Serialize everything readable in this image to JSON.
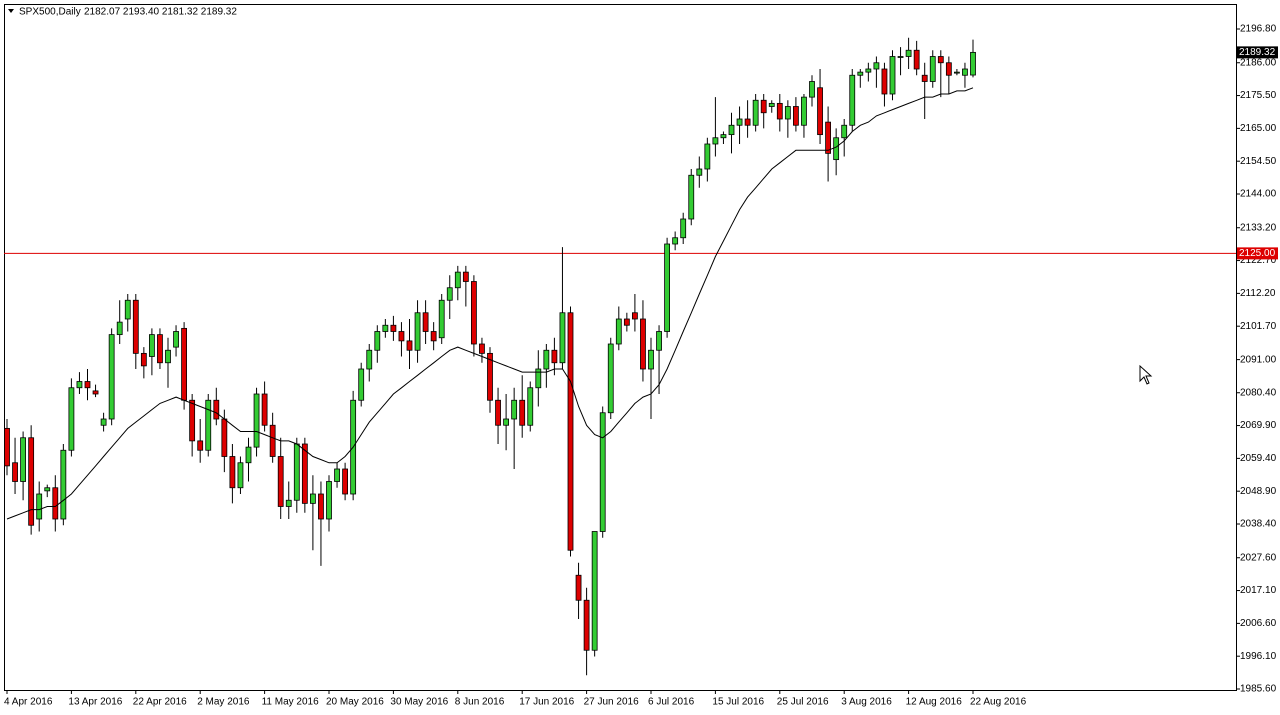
{
  "chart_data": {
    "type": "candlestick",
    "title": "SPX500,Daily",
    "subtitle": "2182.07 2193.40 2181.32 2189.32",
    "categories": [
      "4 Apr 2016",
      null,
      null,
      null,
      null,
      null,
      null,
      null,
      "13 Apr 2016",
      null,
      null,
      null,
      null,
      null,
      null,
      null,
      "22 Apr 2016",
      null,
      null,
      null,
      null,
      null,
      null,
      null,
      "2 May 2016",
      null,
      null,
      null,
      null,
      null,
      null,
      null,
      "11 May 2016",
      null,
      null,
      null,
      null,
      null,
      null,
      null,
      "20 May 2016",
      null,
      null,
      null,
      null,
      null,
      null,
      null,
      "30 May 2016",
      null,
      null,
      null,
      null,
      null,
      null,
      null,
      "8 Jun 2016",
      null,
      null,
      null,
      null,
      null,
      null,
      null,
      "17 Jun 2016",
      null,
      null,
      null,
      null,
      null,
      null,
      null,
      "27 Jun 2016",
      null,
      null,
      null,
      null,
      null,
      null,
      null,
      "6 Jul 2016",
      null,
      null,
      null,
      null,
      null,
      null,
      null,
      "15 Jul 2016",
      null,
      null,
      null,
      null,
      null,
      null,
      null,
      "25 Jul 2016",
      null,
      null,
      null,
      null,
      null,
      null,
      null,
      "3 Aug 2016",
      null,
      null,
      null,
      null,
      null,
      null,
      null,
      "12 Aug 2016",
      null,
      null,
      null,
      null,
      null,
      null,
      null,
      "22 Aug 2016"
    ],
    "open": [
      2069,
      2058,
      2052,
      2066,
      2040,
      2049,
      2050,
      2040,
      2062,
      2082,
      2084,
      2081,
      2070,
      2072,
      2099,
      2104,
      2110,
      2093,
      2092,
      2099,
      2090,
      2095,
      2101,
      2078,
      2065,
      2062,
      2078,
      2072,
      2060,
      2050,
      2058,
      2063,
      2080,
      2070,
      2060,
      2044,
      2046,
      2064,
      2045,
      2048,
      2040,
      2052,
      2056,
      2048,
      2078,
      2088,
      2094,
      2100,
      2102,
      2100,
      2097,
      2094,
      2106,
      2100,
      2098,
      2110,
      2114,
      2119,
      2116,
      2096,
      2093,
      2078,
      2070,
      2072,
      2078,
      2070,
      2082,
      2088,
      2094,
      2090,
      2106,
      2022,
      2014,
      1998,
      2036,
      2074,
      2096,
      2104,
      2106,
      2104,
      2088,
      2094,
      2100,
      2128,
      2130,
      2136,
      2150,
      2152,
      2160,
      2162,
      2163,
      2166,
      2168,
      2166,
      2174,
      2172,
      2173,
      2168,
      2172,
      2166,
      2175,
      2178,
      2167,
      2155,
      2162,
      2166,
      2182,
      2183,
      2184,
      2184,
      2176,
      2188,
      2188,
      2190,
      2182,
      2180,
      2188,
      2186,
      2183,
      2182,
      2182.07
    ],
    "high": [
      2072,
      2066,
      2068,
      2070,
      2052,
      2051,
      2054,
      2064,
      2085,
      2087,
      2088,
      2083,
      2074,
      2101,
      2110,
      2112,
      2112,
      2095,
      2101,
      2101,
      2098,
      2102,
      2103,
      2080,
      2072,
      2080,
      2082,
      2075,
      2064,
      2060,
      2066,
      2082,
      2084,
      2074,
      2066,
      2052,
      2066,
      2066,
      2054,
      2052,
      2054,
      2058,
      2058,
      2081,
      2090,
      2096,
      2102,
      2104,
      2105,
      2103,
      2104,
      2110,
      2110,
      2103,
      2112,
      2118,
      2121,
      2121,
      2118,
      2098,
      2095,
      2082,
      2080,
      2082,
      2086,
      2084,
      2094,
      2096,
      2098,
      2127,
      2108,
      2026,
      2018,
      2036,
      2076,
      2098,
      2108,
      2106,
      2112,
      2110,
      2098,
      2102,
      2130,
      2132,
      2138,
      2152,
      2156,
      2162,
      2175,
      2164,
      2170,
      2172,
      2174,
      2176,
      2176,
      2174,
      2176,
      2174,
      2175,
      2176,
      2182,
      2184,
      2172,
      2165,
      2168,
      2184,
      2184,
      2186,
      2188,
      2186,
      2190,
      2191,
      2194,
      2193,
      2186,
      2190,
      2190,
      2188,
      2184,
      2186,
      2193.4
    ],
    "low": [
      2054,
      2048,
      2046,
      2035,
      2036,
      2047,
      2036,
      2038,
      2060,
      2080,
      2078,
      2079,
      2068,
      2070,
      2096,
      2100,
      2088,
      2085,
      2086,
      2088,
      2082,
      2092,
      2075,
      2060,
      2058,
      2060,
      2070,
      2055,
      2045,
      2048,
      2052,
      2060,
      2068,
      2058,
      2040,
      2040,
      2042,
      2042,
      2030,
      2025,
      2036,
      2050,
      2046,
      2046,
      2076,
      2084,
      2090,
      2098,
      2097,
      2092,
      2088,
      2090,
      2096,
      2094,
      2096,
      2104,
      2110,
      2108,
      2092,
      2090,
      2074,
      2064,
      2062,
      2056,
      2066,
      2068,
      2076,
      2082,
      2086,
      2088,
      2028,
      2008,
      1990,
      1996,
      2034,
      2072,
      2094,
      2100,
      2100,
      2084,
      2072,
      2080,
      2098,
      2126,
      2128,
      2134,
      2146,
      2148,
      2156,
      2160,
      2157,
      2160,
      2162,
      2164,
      2165,
      2170,
      2164,
      2162,
      2164,
      2162,
      2172,
      2160,
      2148,
      2150,
      2156,
      2164,
      2178,
      2180,
      2178,
      2172,
      2174,
      2182,
      2184,
      2182,
      2168,
      2178,
      2175,
      2176,
      2182,
      2178,
      2181.32
    ],
    "close": [
      2057,
      2052,
      2066,
      2038,
      2048,
      2050,
      2040,
      2062,
      2082,
      2084,
      2082,
      2080,
      2072,
      2099,
      2103,
      2110,
      2093,
      2089,
      2099,
      2090,
      2094,
      2100,
      2078,
      2065,
      2062,
      2078,
      2072,
      2060,
      2050,
      2058,
      2063,
      2080,
      2070,
      2060,
      2044,
      2046,
      2064,
      2045,
      2048,
      2040,
      2052,
      2056,
      2048,
      2078,
      2088,
      2094,
      2100,
      2102,
      2100,
      2097,
      2094,
      2106,
      2100,
      2097,
      2110,
      2114,
      2119,
      2116,
      2096,
      2093,
      2078,
      2070,
      2072,
      2078,
      2070,
      2082,
      2088,
      2094,
      2090,
      2106,
      2030,
      2014,
      1998,
      2036,
      2074,
      2096,
      2104,
      2102,
      2104,
      2088,
      2094,
      2100,
      2128,
      2130,
      2136,
      2150,
      2152,
      2160,
      2162,
      2163,
      2166,
      2168,
      2166,
      2174,
      2170,
      2173,
      2168,
      2172,
      2166,
      2175,
      2180,
      2163,
      2157,
      2162,
      2166,
      2182,
      2183,
      2184,
      2186,
      2176,
      2188,
      2188,
      2190,
      2184,
      2180,
      2188,
      2186,
      2182,
      2183,
      2184,
      2189.32
    ],
    "ma": {
      "color": "#000000",
      "values": [
        2040,
        2041,
        2042,
        2043,
        2043,
        2044,
        2044,
        2046,
        2048,
        2051,
        2054,
        2057,
        2060,
        2063,
        2066,
        2069,
        2071,
        2073,
        2075,
        2077,
        2078,
        2079,
        2078,
        2077,
        2076,
        2075,
        2074,
        2072,
        2070,
        2068,
        2068,
        2068,
        2067,
        2066,
        2065,
        2065,
        2064,
        2062,
        2060,
        2059,
        2058,
        2058,
        2060,
        2063,
        2067,
        2071,
        2074,
        2077,
        2080,
        2082,
        2084,
        2086,
        2088,
        2090,
        2092,
        2094,
        2095,
        2094,
        2093,
        2092,
        2091,
        2090,
        2089,
        2088,
        2087,
        2087,
        2087,
        2087,
        2088,
        2088,
        2084,
        2076,
        2070,
        2067,
        2066,
        2068,
        2071,
        2074,
        2077,
        2079,
        2080,
        2083,
        2088,
        2094,
        2100,
        2106,
        2112,
        2118,
        2124,
        2129,
        2134,
        2139,
        2143,
        2146,
        2149,
        2152,
        2154,
        2156,
        2158,
        2158,
        2158,
        2158,
        2158,
        2159,
        2161,
        2164,
        2166,
        2167,
        2169,
        2170,
        2171,
        2172,
        2173,
        2174,
        2175,
        2175,
        2176,
        2176,
        2177,
        2177,
        2178
      ]
    },
    "up_color": "#33cc33",
    "down_color": "#dd0000",
    "ylim": [
      1985.28,
      2204.8
    ],
    "yticks": [
      {
        "value": 2196.8,
        "label": "2196.80"
      },
      {
        "value": 2186,
        "label": "2186.00"
      },
      {
        "value": 2175.5,
        "label": "2175.50"
      },
      {
        "value": 2165,
        "label": "2165.00"
      },
      {
        "value": 2154.5,
        "label": "2154.50"
      },
      {
        "value": 2144,
        "label": "2144.00"
      },
      {
        "value": 2133.2,
        "label": "2133.20"
      },
      {
        "value": 2122.7,
        "label": "2122.70"
      },
      {
        "value": 2112.2,
        "label": "2112.20"
      },
      {
        "value": 2101.7,
        "label": "2101.70"
      },
      {
        "value": 2091,
        "label": "2091.00"
      },
      {
        "value": 2080.4,
        "label": "2080.40"
      },
      {
        "value": 2069.9,
        "label": "2069.90"
      },
      {
        "value": 2059.4,
        "label": "2059.40"
      },
      {
        "value": 2048.9,
        "label": "2048.90"
      },
      {
        "value": 2038.4,
        "label": "2038.40"
      },
      {
        "value": 2027.6,
        "label": "2027.60"
      },
      {
        "value": 2017.1,
        "label": "2017.10"
      },
      {
        "value": 2006.6,
        "label": "2006.60"
      },
      {
        "value": 1996.1,
        "label": "1996.10"
      },
      {
        "value": 1985.6,
        "label": "1985.60"
      }
    ],
    "level": {
      "value": 2125,
      "label": "2125.00",
      "color": "#dd0000"
    },
    "last_price": {
      "value": 2189.32,
      "label": "2189.32",
      "color": "#000000"
    }
  }
}
